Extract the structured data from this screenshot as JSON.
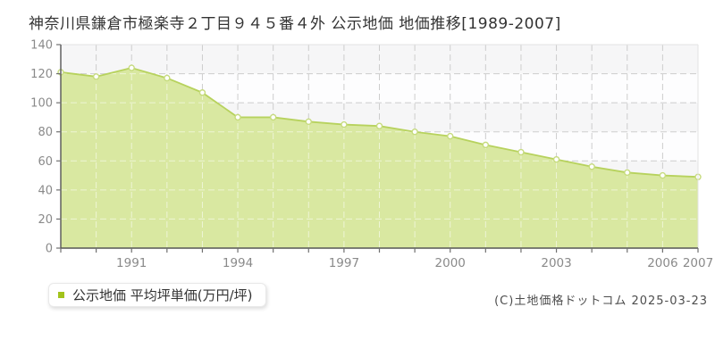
{
  "title": "神奈川県鎌倉市極楽寺２丁目９４５番４外 公示地価 地価推移[1989-2007]",
  "legend": {
    "label": "公示地価 平均坪単価(万円/坪)",
    "marker_color": "#a2c31c"
  },
  "footer": {
    "credit": "(C)土地価格ドットコム 2025-03-23"
  },
  "chart_data": {
    "type": "area",
    "title": "神奈川県鎌倉市極楽寺２丁目９４５番４外 公示地価 地価推移[1989-2007]",
    "series_name": "公示地価 平均坪単価(万円/坪)",
    "x": [
      1989,
      1990,
      1991,
      1992,
      1993,
      1994,
      1995,
      1996,
      1997,
      1998,
      1999,
      2000,
      2001,
      2002,
      2003,
      2004,
      2005,
      2006,
      2007
    ],
    "values": [
      121,
      118,
      124,
      117,
      107,
      90,
      90,
      87,
      85,
      84,
      80,
      77,
      71,
      66,
      61,
      56,
      52,
      50,
      49
    ],
    "x_tick_labels": [
      "1991",
      "1994",
      "1997",
      "2000",
      "2003",
      "2006",
      "2007"
    ],
    "y_ticks": [
      0,
      20,
      40,
      60,
      80,
      100,
      120,
      140
    ],
    "ylim": [
      0,
      140
    ],
    "grid": "dashed",
    "legend_position": "bottom-left",
    "colors": {
      "fill": "#d9e8a1",
      "line": "#b7d25d",
      "marker_fill": "#ffffff",
      "marker_ring": "#c6db7d",
      "grid": "#cdcdcd",
      "grid_over_fill": "#ffffff",
      "axis": "#555555",
      "tick": "#707070",
      "border": "#e3e3e3",
      "tick_label": "#8a8a8a",
      "band_gray": "#f6f6f7",
      "band_white": "#fdfdfe"
    }
  }
}
